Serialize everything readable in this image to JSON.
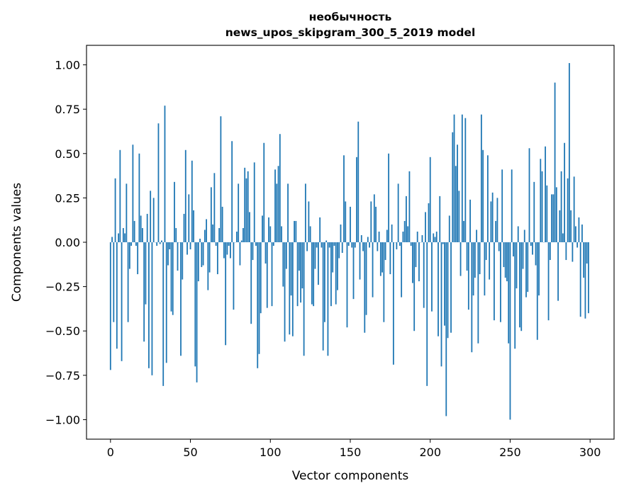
{
  "chart_data": {
    "type": "bar",
    "title": "необычность",
    "subtitle": "news_upos_skipgram_300_5_2019 model",
    "xlabel": "Vector components",
    "ylabel": "Components values",
    "xlim": [
      -15,
      315
    ],
    "ylim": [
      -1.11,
      1.11
    ],
    "xticks": [
      0,
      50,
      100,
      150,
      200,
      250,
      300
    ],
    "xtick_labels": [
      "0",
      "50",
      "100",
      "150",
      "200",
      "250",
      "300"
    ],
    "yticks": [
      -1.0,
      -0.75,
      -0.5,
      -0.25,
      0.0,
      0.25,
      0.5,
      0.75,
      1.0
    ],
    "ytick_labels": [
      "−1.00",
      "−0.75",
      "−0.50",
      "−0.25",
      "0.00",
      "0.25",
      "0.50",
      "0.75",
      "1.00"
    ],
    "grid": false,
    "color": "#1f77b4",
    "values": [
      -0.72,
      0.03,
      -0.45,
      0.36,
      -0.6,
      0.05,
      0.52,
      -0.67,
      0.08,
      0.05,
      0.33,
      -0.45,
      -0.15,
      -0.02,
      0.55,
      0.12,
      -0.02,
      -0.18,
      0.5,
      0.15,
      0.08,
      -0.56,
      -0.35,
      0.16,
      -0.71,
      0.29,
      -0.75,
      0.25,
      0.0,
      -0.02,
      0.67,
      -0.01,
      0.01,
      -0.81,
      0.77,
      -0.68,
      -0.13,
      -0.04,
      -0.39,
      -0.41,
      0.34,
      0.08,
      -0.16,
      0.0,
      -0.64,
      -0.21,
      0.16,
      0.52,
      -0.07,
      0.27,
      -0.04,
      0.46,
      0.18,
      -0.7,
      -0.79,
      -0.22,
      0.02,
      -0.14,
      -0.13,
      0.07,
      0.13,
      -0.27,
      -0.17,
      0.31,
      0.1,
      0.39,
      -0.02,
      -0.18,
      0.08,
      0.71,
      0.2,
      -0.09,
      -0.58,
      -0.07,
      -0.02,
      -0.09,
      0.57,
      -0.38,
      0.0,
      0.06,
      0.33,
      -0.13,
      0.01,
      0.08,
      0.42,
      0.36,
      0.4,
      0.17,
      -0.46,
      -0.1,
      0.45,
      -0.02,
      -0.71,
      -0.63,
      -0.4,
      0.15,
      0.56,
      -0.12,
      -0.37,
      0.14,
      0.09,
      -0.36,
      -0.02,
      0.41,
      0.33,
      0.43,
      0.61,
      0.09,
      -0.25,
      -0.56,
      -0.15,
      0.33,
      -0.52,
      -0.3,
      -0.53,
      0.12,
      0.12,
      -0.36,
      -0.16,
      -0.34,
      -0.26,
      -0.64,
      0.33,
      -0.05,
      0.23,
      0.09,
      -0.35,
      -0.36,
      -0.15,
      -0.03,
      -0.24,
      0.14,
      -0.03,
      -0.61,
      -0.45,
      0.01,
      -0.64,
      -0.03,
      -0.36,
      -0.17,
      -0.02,
      -0.35,
      -0.27,
      -0.09,
      0.1,
      -0.06,
      0.49,
      0.23,
      -0.48,
      -0.02,
      0.2,
      -0.03,
      -0.32,
      -0.03,
      0.48,
      0.68,
      -0.21,
      0.04,
      -0.05,
      -0.51,
      -0.41,
      0.03,
      -0.03,
      0.23,
      -0.31,
      0.27,
      0.2,
      -0.05,
      0.06,
      -0.19,
      -0.17,
      -0.45,
      -0.1,
      0.07,
      0.5,
      -0.18,
      0.1,
      -0.69,
      0.0,
      -0.04,
      0.33,
      -0.02,
      -0.31,
      0.06,
      0.12,
      0.26,
      0.09,
      0.4,
      -0.02,
      -0.23,
      -0.5,
      -0.14,
      0.06,
      -0.22,
      0.0,
      0.04,
      -0.37,
      0.17,
      -0.81,
      0.22,
      0.48,
      -0.39,
      0.05,
      0.03,
      0.06,
      -0.53,
      0.26,
      -0.7,
      -0.01,
      -0.47,
      -0.98,
      -0.54,
      0.15,
      -0.51,
      0.62,
      0.72,
      0.43,
      0.55,
      0.29,
      -0.19,
      0.72,
      0.12,
      0.7,
      -0.16,
      -0.38,
      0.24,
      -0.62,
      -0.3,
      -0.2,
      0.07,
      -0.57,
      -0.18,
      0.72,
      0.52,
      -0.3,
      -0.1,
      0.49,
      -0.21,
      0.23,
      0.28,
      -0.44,
      0.12,
      0.25,
      -0.05,
      -0.45,
      0.41,
      -0.14,
      -0.2,
      -0.22,
      -0.57,
      -1.0,
      0.41,
      -0.08,
      -0.6,
      -0.26,
      0.09,
      -0.48,
      -0.5,
      -0.15,
      0.07,
      -0.31,
      -0.28,
      0.53,
      -0.02,
      -0.07,
      0.34,
      -0.13,
      -0.55,
      -0.3,
      0.47,
      0.4,
      0.0,
      0.54,
      0.32,
      -0.44,
      -0.1,
      0.27,
      0.27,
      0.9,
      0.31,
      -0.33,
      0.18,
      0.4,
      0.05,
      0.56,
      -0.1,
      0.36,
      1.01,
      0.18,
      -0.11,
      0.37,
      0.09,
      -0.03,
      0.14,
      -0.42,
      0.1,
      -0.2,
      -0.43,
      -0.12,
      -0.4
    ]
  }
}
